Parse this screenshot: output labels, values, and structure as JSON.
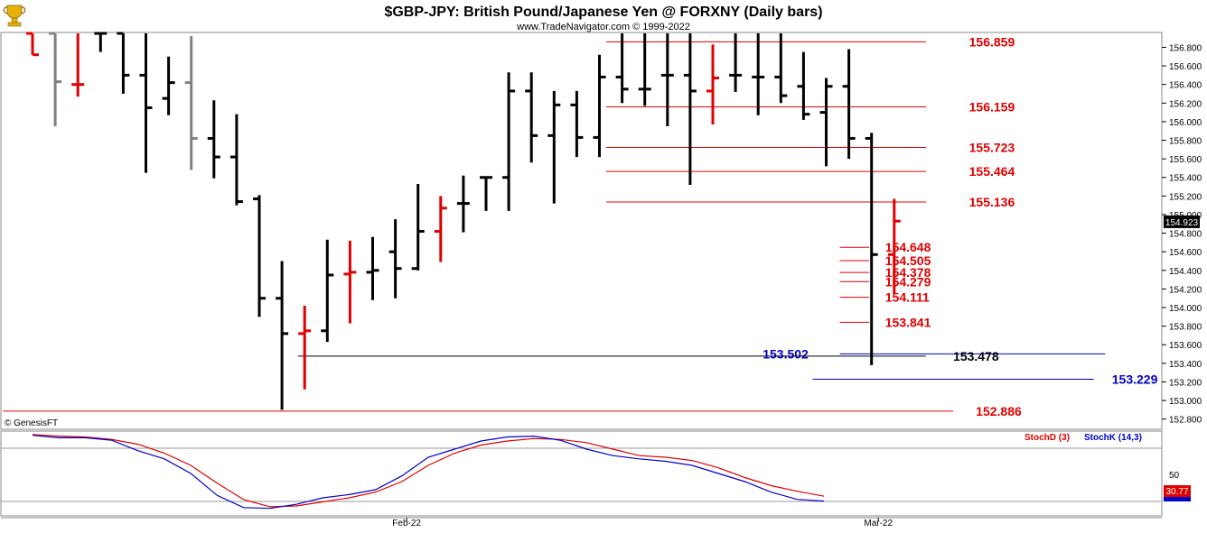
{
  "chart_data": [
    {
      "type": "ohlc",
      "title": "$GBP-JPY:  British Pound/Japanese Yen @ FORXNY  (Daily bars)",
      "subtitle": "www.TradeNavigator.com © 1999-2022",
      "watermark": "© GenesisFT",
      "ylim": [
        152.7,
        156.95
      ],
      "y_ticks": [
        "156.800",
        "156.600",
        "156.400",
        "156.200",
        "156.000",
        "155.800",
        "155.600",
        "155.400",
        "155.200",
        "155.000",
        "154.800",
        "154.600",
        "154.400",
        "154.200",
        "154.000",
        "153.800",
        "153.600",
        "153.400",
        "153.200",
        "153.000",
        "152.800"
      ],
      "last_price": "154.923",
      "x_labels": [
        {
          "label": "Feb-22",
          "index": 16.5
        },
        {
          "label": "Mar-22",
          "index": 37.3
        }
      ],
      "colors": {
        "up": "#e00000",
        "down": "#000000",
        "neutral": "#808080",
        "level_red": "#e00000",
        "level_blue": "#0000cc",
        "level_black": "#000000"
      },
      "bars": [
        {
          "o": 156.95,
          "h": 156.95,
          "l": 156.72,
          "c": 156.72,
          "color": "red"
        },
        {
          "o": 156.95,
          "h": 156.95,
          "l": 155.95,
          "c": 156.43,
          "color": "gray"
        },
        {
          "o": 156.4,
          "h": 156.95,
          "l": 156.27,
          "c": 156.4,
          "color": "red"
        },
        {
          "o": 156.95,
          "h": 156.95,
          "l": 156.75,
          "c": 156.95,
          "color": "black"
        },
        {
          "o": 156.95,
          "h": 156.95,
          "l": 156.3,
          "c": 156.5,
          "color": "black"
        },
        {
          "o": 156.5,
          "h": 156.95,
          "l": 155.45,
          "c": 156.15,
          "color": "black"
        },
        {
          "o": 156.25,
          "h": 156.7,
          "l": 156.07,
          "c": 156.42,
          "color": "black"
        },
        {
          "o": 156.42,
          "h": 156.92,
          "l": 155.48,
          "c": 155.82,
          "color": "gray"
        },
        {
          "o": 155.82,
          "h": 156.23,
          "l": 155.39,
          "c": 155.62,
          "color": "black"
        },
        {
          "o": 155.62,
          "h": 156.08,
          "l": 155.1,
          "c": 155.14,
          "color": "black"
        },
        {
          "o": 155.17,
          "h": 155.21,
          "l": 153.9,
          "c": 154.1,
          "color": "black"
        },
        {
          "o": 154.1,
          "h": 154.5,
          "l": 152.9,
          "c": 153.72,
          "color": "black"
        },
        {
          "o": 153.72,
          "h": 154.02,
          "l": 153.12,
          "c": 153.75,
          "color": "red"
        },
        {
          "o": 153.75,
          "h": 154.73,
          "l": 153.63,
          "c": 154.35,
          "color": "black"
        },
        {
          "o": 154.36,
          "h": 154.72,
          "l": 153.83,
          "c": 154.38,
          "color": "red"
        },
        {
          "o": 154.38,
          "h": 154.76,
          "l": 154.08,
          "c": 154.4,
          "color": "black"
        },
        {
          "o": 154.6,
          "h": 154.95,
          "l": 154.1,
          "c": 154.42,
          "color": "black"
        },
        {
          "o": 154.42,
          "h": 155.33,
          "l": 154.4,
          "c": 154.82,
          "color": "black"
        },
        {
          "o": 154.82,
          "h": 155.2,
          "l": 154.49,
          "c": 155.07,
          "color": "red"
        },
        {
          "o": 155.12,
          "h": 155.42,
          "l": 154.81,
          "c": 155.12,
          "color": "black"
        },
        {
          "o": 155.4,
          "h": 155.4,
          "l": 155.04,
          "c": 155.4,
          "color": "black"
        },
        {
          "o": 155.4,
          "h": 156.53,
          "l": 155.04,
          "c": 156.33,
          "color": "black"
        },
        {
          "o": 156.33,
          "h": 156.53,
          "l": 155.56,
          "c": 155.85,
          "color": "black"
        },
        {
          "o": 155.85,
          "h": 156.33,
          "l": 155.12,
          "c": 156.18,
          "color": "black"
        },
        {
          "o": 156.18,
          "h": 156.33,
          "l": 155.62,
          "c": 155.83,
          "color": "black"
        },
        {
          "o": 155.83,
          "h": 156.72,
          "l": 155.62,
          "c": 156.48,
          "color": "black"
        },
        {
          "o": 156.48,
          "h": 156.95,
          "l": 156.2,
          "c": 156.35,
          "color": "black"
        },
        {
          "o": 156.35,
          "h": 156.95,
          "l": 156.17,
          "c": 156.35,
          "color": "black"
        },
        {
          "o": 156.5,
          "h": 156.95,
          "l": 155.95,
          "c": 156.5,
          "color": "black"
        },
        {
          "o": 156.5,
          "h": 156.95,
          "l": 155.32,
          "c": 156.33,
          "color": "black"
        },
        {
          "o": 156.33,
          "h": 156.83,
          "l": 155.97,
          "c": 156.47,
          "color": "red"
        },
        {
          "o": 156.5,
          "h": 156.95,
          "l": 156.32,
          "c": 156.5,
          "color": "black"
        },
        {
          "o": 156.48,
          "h": 156.95,
          "l": 156.07,
          "c": 156.48,
          "color": "black"
        },
        {
          "o": 156.48,
          "h": 156.95,
          "l": 156.2,
          "c": 156.28,
          "color": "black"
        },
        {
          "o": 156.38,
          "h": 156.75,
          "l": 156.02,
          "c": 156.08,
          "color": "black"
        },
        {
          "o": 156.1,
          "h": 156.47,
          "l": 155.52,
          "c": 156.38,
          "color": "black"
        },
        {
          "o": 156.38,
          "h": 156.78,
          "l": 155.6,
          "c": 155.82,
          "color": "black"
        },
        {
          "o": 155.82,
          "h": 155.88,
          "l": 153.38,
          "c": 154.57,
          "color": "black"
        },
        {
          "o": 154.57,
          "h": 155.17,
          "l": 154.15,
          "c": 154.93,
          "color": "red"
        }
      ],
      "levels": [
        {
          "value": 156.859,
          "label": "156.859",
          "color": "red",
          "line": [
            25.3,
            39.4
          ],
          "label_at": 41.3
        },
        {
          "value": 156.159,
          "label": "156.159",
          "color": "red",
          "line": [
            25.3,
            39.4
          ],
          "label_at": 41.3
        },
        {
          "value": 155.723,
          "label": "155.723",
          "color": "red",
          "line": [
            25.3,
            39.4
          ],
          "label_at": 41.3
        },
        {
          "value": 155.464,
          "label": "155.464",
          "color": "red",
          "line": [
            25.3,
            39.4
          ],
          "label_at": 41.3
        },
        {
          "value": 155.136,
          "label": "155.136",
          "color": "red",
          "line": [
            25.3,
            39.4
          ],
          "label_at": 41.3
        },
        {
          "value": 154.648,
          "label": "154.648",
          "color": "red",
          "line": [
            35.6,
            36.9
          ],
          "label_at": 37.6
        },
        {
          "value": 154.505,
          "label": "154.505",
          "color": "red",
          "line": [
            35.6,
            36.9
          ],
          "label_at": 37.6
        },
        {
          "value": 154.378,
          "label": "154.378",
          "color": "red",
          "line": [
            35.6,
            36.9
          ],
          "label_at": 37.6
        },
        {
          "value": 154.279,
          "label": "154.279",
          "color": "red",
          "line": [
            35.6,
            36.9
          ],
          "label_at": 37.6
        },
        {
          "value": 154.111,
          "label": "154.111",
          "color": "red",
          "line": [
            35.6,
            36.9
          ],
          "label_at": 37.6
        },
        {
          "value": 153.841,
          "label": "153.841",
          "color": "red",
          "line": [
            35.6,
            36.9
          ],
          "label_at": 37.6
        },
        {
          "value": 153.502,
          "label": "153.502",
          "color": "blue",
          "line": [
            35.6,
            47.3
          ],
          "label_at": 32.2
        },
        {
          "value": 153.478,
          "label": "153.478",
          "color": "black",
          "line": [
            11.7,
            39.4
          ],
          "label_at": 40.6
        },
        {
          "value": 153.229,
          "label": "153.229",
          "color": "blue",
          "line": [
            34.4,
            46.8
          ],
          "label_at": 47.6
        },
        {
          "value": 152.886,
          "label": "152.886",
          "color": "red",
          "line": [
            -1.3,
            40.6
          ],
          "label_at": 41.6
        }
      ]
    },
    {
      "type": "line",
      "title": "",
      "series": [
        {
          "name": "StochD (3)",
          "color": "#e00000",
          "values": [
            98,
            96,
            95,
            92,
            86,
            75,
            60,
            38,
            18,
            9,
            10,
            15,
            20,
            27,
            40,
            60,
            75,
            85,
            90,
            93,
            92,
            88,
            80,
            72,
            70,
            66,
            57,
            45,
            35,
            28,
            22
          ]
        },
        {
          "name": "StochK (14,3)",
          "color": "#0000cc",
          "values": [
            97,
            94,
            94,
            91,
            78,
            68,
            50,
            23,
            8,
            7,
            12,
            20,
            24,
            30,
            47,
            70,
            80,
            90,
            95,
            96,
            91,
            80,
            72,
            68,
            65,
            60,
            50,
            40,
            27,
            18,
            16
          ]
        }
      ],
      "ylim": [
        0,
        100
      ],
      "y_ticks": [
        "50"
      ],
      "last_value": "30.77",
      "x_labels": [
        {
          "label": "Feb-22"
        },
        {
          "label": "Mar-22"
        }
      ]
    }
  ]
}
